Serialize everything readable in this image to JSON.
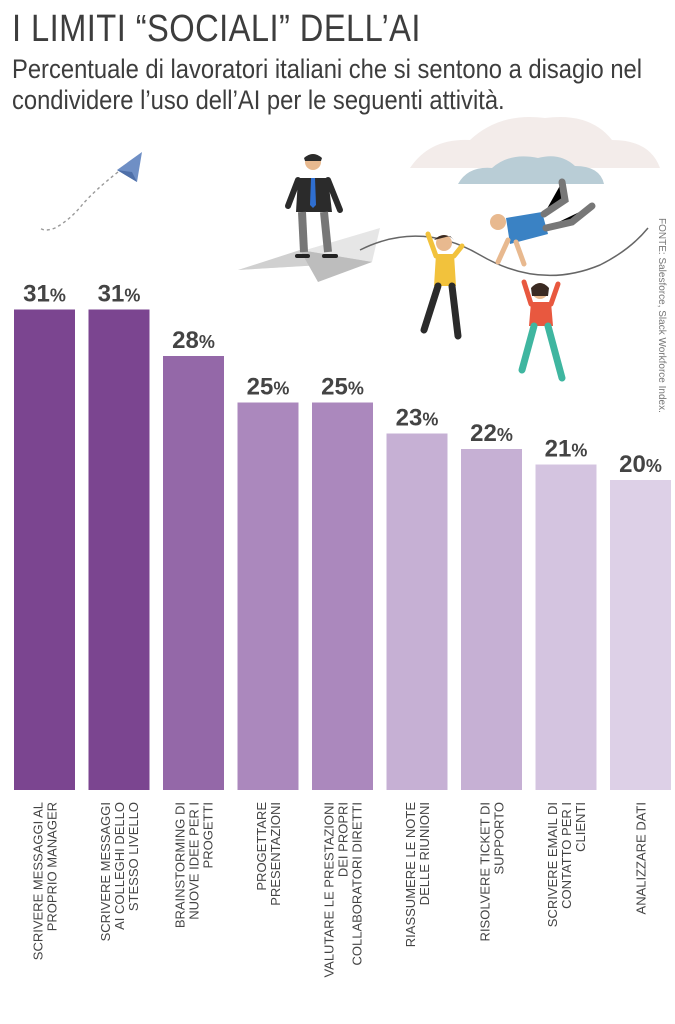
{
  "title": "I LIMITI “SOCIALI” DELL’AI",
  "subtitle": "Percentuale di lavoratori italiani che si sentono a disagio nel condividere l’uso dell’AI per le seguenti attività.",
  "source": "FONTE: Salesforce, Slack Workforce Index.",
  "chart_data": {
    "type": "bar",
    "categories": [
      [
        "SCRIVERE MESSAGGI AL",
        "PROPRIO MANAGER"
      ],
      [
        "SCRIVERE MESSAGGI",
        "AI COLLEGHI DELLO",
        "STESSO LIVELLO"
      ],
      [
        "BRAINSTORMING DI",
        "NUOVE IDEE PER I",
        "PROGETTI"
      ],
      [
        "PROGETTARE",
        "PRESENTAZIONI"
      ],
      [
        "VALUTARE LE PRESTAZIONI",
        "DEI PROPRI",
        "COLLABORATORI DIRETTI"
      ],
      [
        "RIASSUMERE LE NOTE",
        "DELLE RIUNIONI"
      ],
      [
        "RISOLVERE TICKET DI",
        "SUPPORTO"
      ],
      [
        "SCRIVERE EMAIL DI",
        "CONTATTO PER I",
        "CLIENTI"
      ],
      [
        "ANALIZZARE DATI"
      ]
    ],
    "values": [
      31,
      31,
      28,
      25,
      25,
      23,
      22,
      21,
      20
    ],
    "value_suffix": "%",
    "bar_colors": [
      "#7b4590",
      "#7b4590",
      "#9468a8",
      "#ab88bd",
      "#ab88bd",
      "#c6b0d4",
      "#c6b0d4",
      "#d4c4e0",
      "#ddd0e7"
    ],
    "grid": false,
    "legend": "none"
  }
}
